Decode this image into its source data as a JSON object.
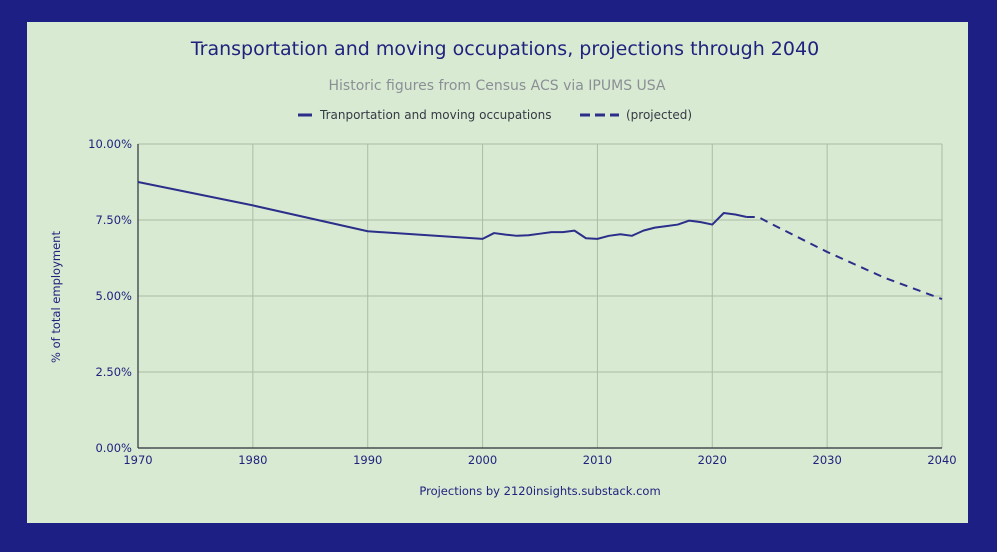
{
  "chart_data": {
    "type": "line",
    "title": "Transportation and moving occupations, projections through 2040",
    "subtitle": "Historic figures from Census ACS via IPUMS USA",
    "xlabel": "",
    "ylabel": "% of total employment",
    "xlim": [
      1970,
      2040
    ],
    "ylim": [
      0,
      10
    ],
    "x_ticks": [
      1970,
      1980,
      1990,
      2000,
      2010,
      2020,
      2030,
      2040
    ],
    "x_tick_labels": [
      "1970",
      "1980",
      "1990",
      "2000",
      "2010",
      "2020",
      "2030",
      "2040"
    ],
    "y_ticks": [
      0,
      2.5,
      5,
      7.5,
      10
    ],
    "y_tick_labels": [
      "0.00%",
      "2.50%",
      "5.00%",
      "7.50%",
      "10.00%"
    ],
    "grid": true,
    "legend_position": "top-center",
    "annotation": "Projections by 2120insights.substack.com",
    "line_color": "#2b2f8a",
    "series": [
      {
        "name": "Tranportation and moving occupations",
        "style": "solid",
        "x": [
          1970,
          1980,
          1990,
          2000,
          2001,
          2002,
          2003,
          2004,
          2005,
          2006,
          2007,
          2008,
          2009,
          2010,
          2011,
          2012,
          2013,
          2014,
          2015,
          2016,
          2017,
          2018,
          2019,
          2020,
          2021,
          2022,
          2023
        ],
        "y": [
          8.75,
          7.98,
          7.13,
          6.88,
          7.07,
          7.02,
          6.98,
          7.0,
          7.05,
          7.1,
          7.1,
          7.15,
          6.9,
          6.88,
          6.98,
          7.03,
          6.98,
          7.15,
          7.25,
          7.3,
          7.35,
          7.48,
          7.43,
          7.35,
          7.73,
          7.68,
          7.6
        ]
      },
      {
        "name": "(projected)",
        "style": "dashed",
        "x": [
          2023,
          2024,
          2025,
          2030,
          2035,
          2040
        ],
        "y": [
          7.6,
          7.6,
          7.4,
          6.45,
          5.6,
          4.9
        ]
      }
    ]
  }
}
